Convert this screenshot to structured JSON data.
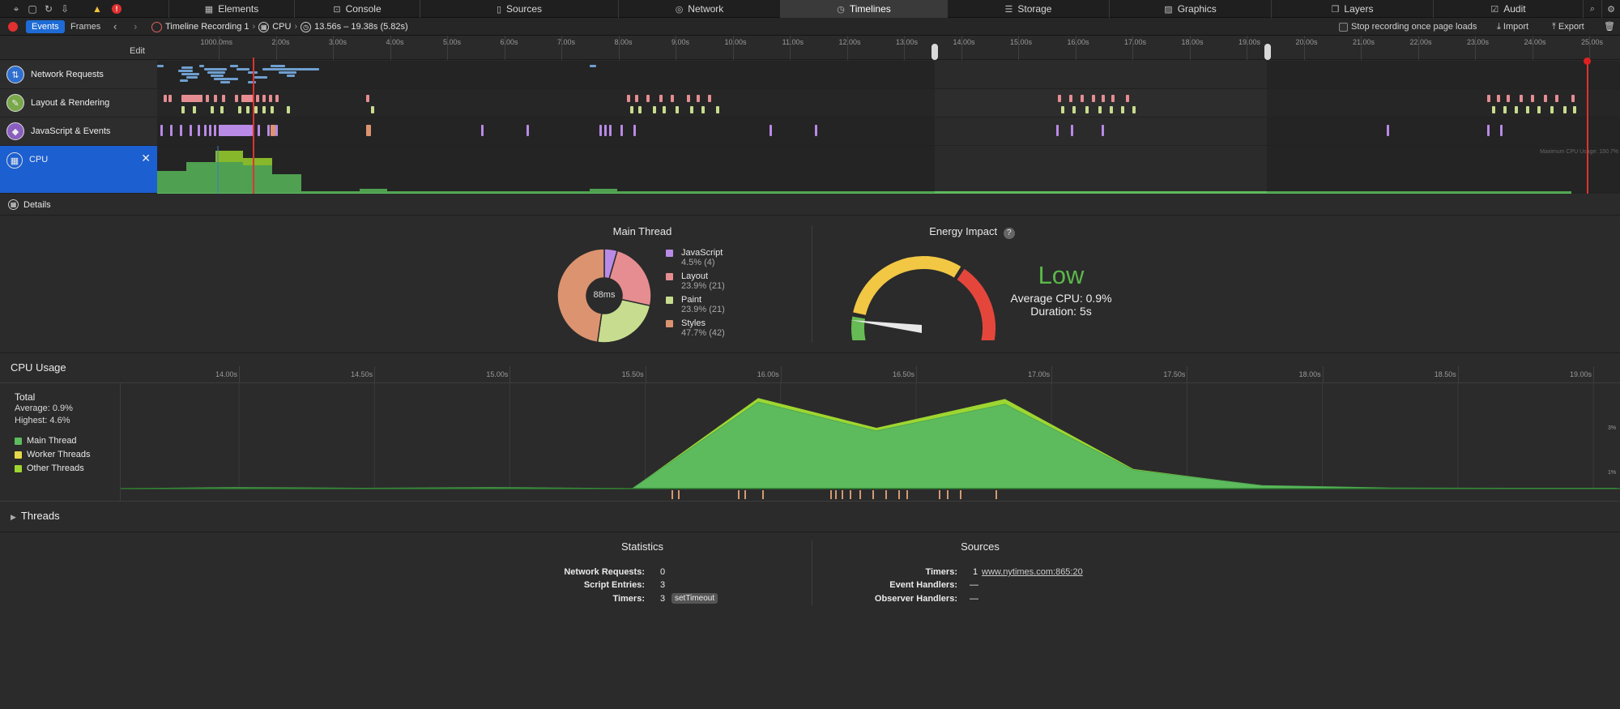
{
  "tabs": [
    {
      "label": "Elements",
      "icon": "elements-icon",
      "active": false
    },
    {
      "label": "Console",
      "icon": "console-icon",
      "active": false
    },
    {
      "label": "Sources",
      "icon": "sources-icon",
      "active": false
    },
    {
      "label": "Network",
      "icon": "network-icon",
      "active": false
    },
    {
      "label": "Timelines",
      "icon": "timelines-icon",
      "active": true
    },
    {
      "label": "Storage",
      "icon": "storage-icon",
      "active": false
    },
    {
      "label": "Graphics",
      "icon": "graphics-icon",
      "active": false
    },
    {
      "label": "Layers",
      "icon": "layers-icon",
      "active": false
    },
    {
      "label": "Audit",
      "icon": "audit-icon",
      "active": false
    }
  ],
  "toolbar": {
    "events_label": "Events",
    "frames_label": "Frames",
    "recording_name": "Timeline Recording 1",
    "instrument": "CPU",
    "range": "13.56s – 19.38s (5.82s)",
    "stop_recording_label": "Stop recording once page loads",
    "import_label": "Import",
    "export_label": "Export"
  },
  "ruler": {
    "edit_label": "Edit",
    "ticks": [
      "1000.0ms",
      "2.00s",
      "3.00s",
      "4.00s",
      "5.00s",
      "6.00s",
      "7.00s",
      "8.00s",
      "9.00s",
      "10.00s",
      "11.00s",
      "12.00s",
      "13.00s",
      "14.00s",
      "15.00s",
      "16.00s",
      "17.00s",
      "18.00s",
      "19.00s",
      "20.00s",
      "21.00s",
      "22.00s",
      "23.00s",
      "24.00s",
      "25.00s"
    ]
  },
  "tracks": {
    "network": "Network Requests",
    "layout": "Layout & Rendering",
    "js": "JavaScript & Events",
    "cpu": "CPU",
    "max_cpu": "Maximum CPU Usage: 150.7%"
  },
  "details_label": "Details",
  "main_thread": {
    "title": "Main Thread",
    "center": "88ms",
    "items": [
      {
        "name": "JavaScript",
        "value": "4.5% (4)",
        "pct": 4.5,
        "color": "#b98ae6"
      },
      {
        "name": "Layout",
        "value": "23.9% (21)",
        "pct": 23.9,
        "color": "#e58d91"
      },
      {
        "name": "Paint",
        "value": "23.9% (21)",
        "pct": 23.9,
        "color": "#c7dc8e"
      },
      {
        "name": "Styles",
        "value": "47.7% (42)",
        "pct": 47.7,
        "color": "#dc9370"
      }
    ]
  },
  "energy": {
    "title": "Energy Impact",
    "help": "?",
    "rating": "Low",
    "avg_cpu": "Average CPU: 0.9%",
    "duration": "Duration: 5s",
    "level": 0.02
  },
  "cpu_usage": {
    "title": "CPU Usage",
    "total_label": "Total",
    "average": "Average: 0.9%",
    "highest": "Highest: 4.6%",
    "legend": [
      {
        "name": "Main Thread",
        "color": "#5dbb5e"
      },
      {
        "name": "Worker Threads",
        "color": "#e6d84a"
      },
      {
        "name": "Other Threads",
        "color": "#9ed631"
      }
    ],
    "ticks": [
      "14.00s",
      "14.50s",
      "15.00s",
      "15.50s",
      "16.00s",
      "16.50s",
      "17.00s",
      "17.50s",
      "18.00s",
      "18.50s",
      "19.00s"
    ],
    "y_ticks": [
      "3%",
      "1%"
    ]
  },
  "chart_data": {
    "type": "area",
    "title": "CPU Usage",
    "xlabel": "",
    "ylabel": "",
    "x": [
      13.56,
      14.0,
      14.5,
      15.0,
      15.5,
      15.55,
      16.04,
      16.5,
      17.0,
      17.5,
      18.0,
      18.5,
      19.0,
      19.38
    ],
    "ylim": [
      0,
      4.8
    ],
    "series": [
      {
        "name": "Main Thread",
        "values": [
          0,
          0.05,
          0.02,
          0.05,
          0.01,
          0.0,
          4.2,
          2.8,
          4.1,
          0.9,
          0.15,
          0.03,
          0.02,
          0.02
        ]
      },
      {
        "name": "Other Threads",
        "values": [
          0,
          0.0,
          0.0,
          0.0,
          0.0,
          0.0,
          0.2,
          0.15,
          0.25,
          0.05,
          0.0,
          0.0,
          0.0,
          0.0
        ]
      }
    ]
  },
  "threads_label": "Threads",
  "statistics": {
    "title": "Statistics",
    "rows": [
      {
        "label": "Network Requests:",
        "value": "0"
      },
      {
        "label": "Script Entries:",
        "value": "3"
      },
      {
        "label": "Timers:",
        "value": "3",
        "chip": "setTimeout"
      }
    ]
  },
  "sources": {
    "title": "Sources",
    "rows": [
      {
        "label": "Timers:",
        "value": "1",
        "link": "www.nytimes.com:865:20"
      },
      {
        "label": "Event Handlers:",
        "value": "—"
      },
      {
        "label": "Observer Handlers:",
        "value": "—"
      }
    ]
  }
}
